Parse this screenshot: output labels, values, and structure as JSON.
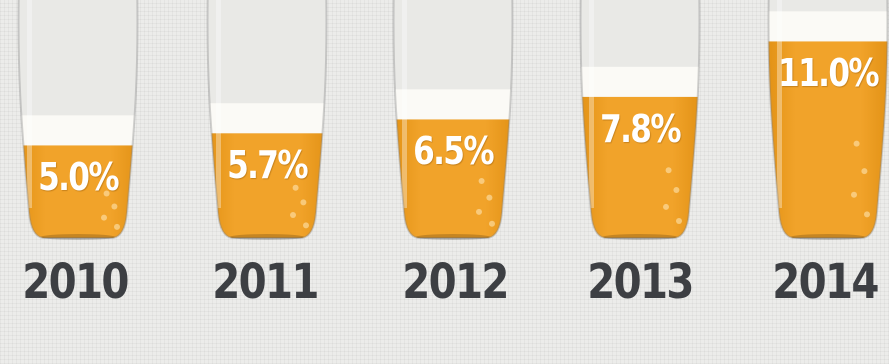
{
  "chart_data": {
    "type": "bar",
    "categories": [
      "2010",
      "2011",
      "2012",
      "2013",
      "2014"
    ],
    "values": [
      5.0,
      5.7,
      6.5,
      7.8,
      11.0
    ],
    "value_labels": [
      "5.0%",
      "5.7%",
      "6.5%",
      "7.8%",
      "11.0%"
    ],
    "ylim": [
      0,
      12
    ],
    "grid": false,
    "colors": {
      "beer": "#f1a32a",
      "beer_dark": "#e08f12",
      "foam": "#fbfaf6",
      "glass_empty": "#e9e9e6",
      "year_text": "#3d3f43",
      "label_text": "#ffffff"
    }
  }
}
